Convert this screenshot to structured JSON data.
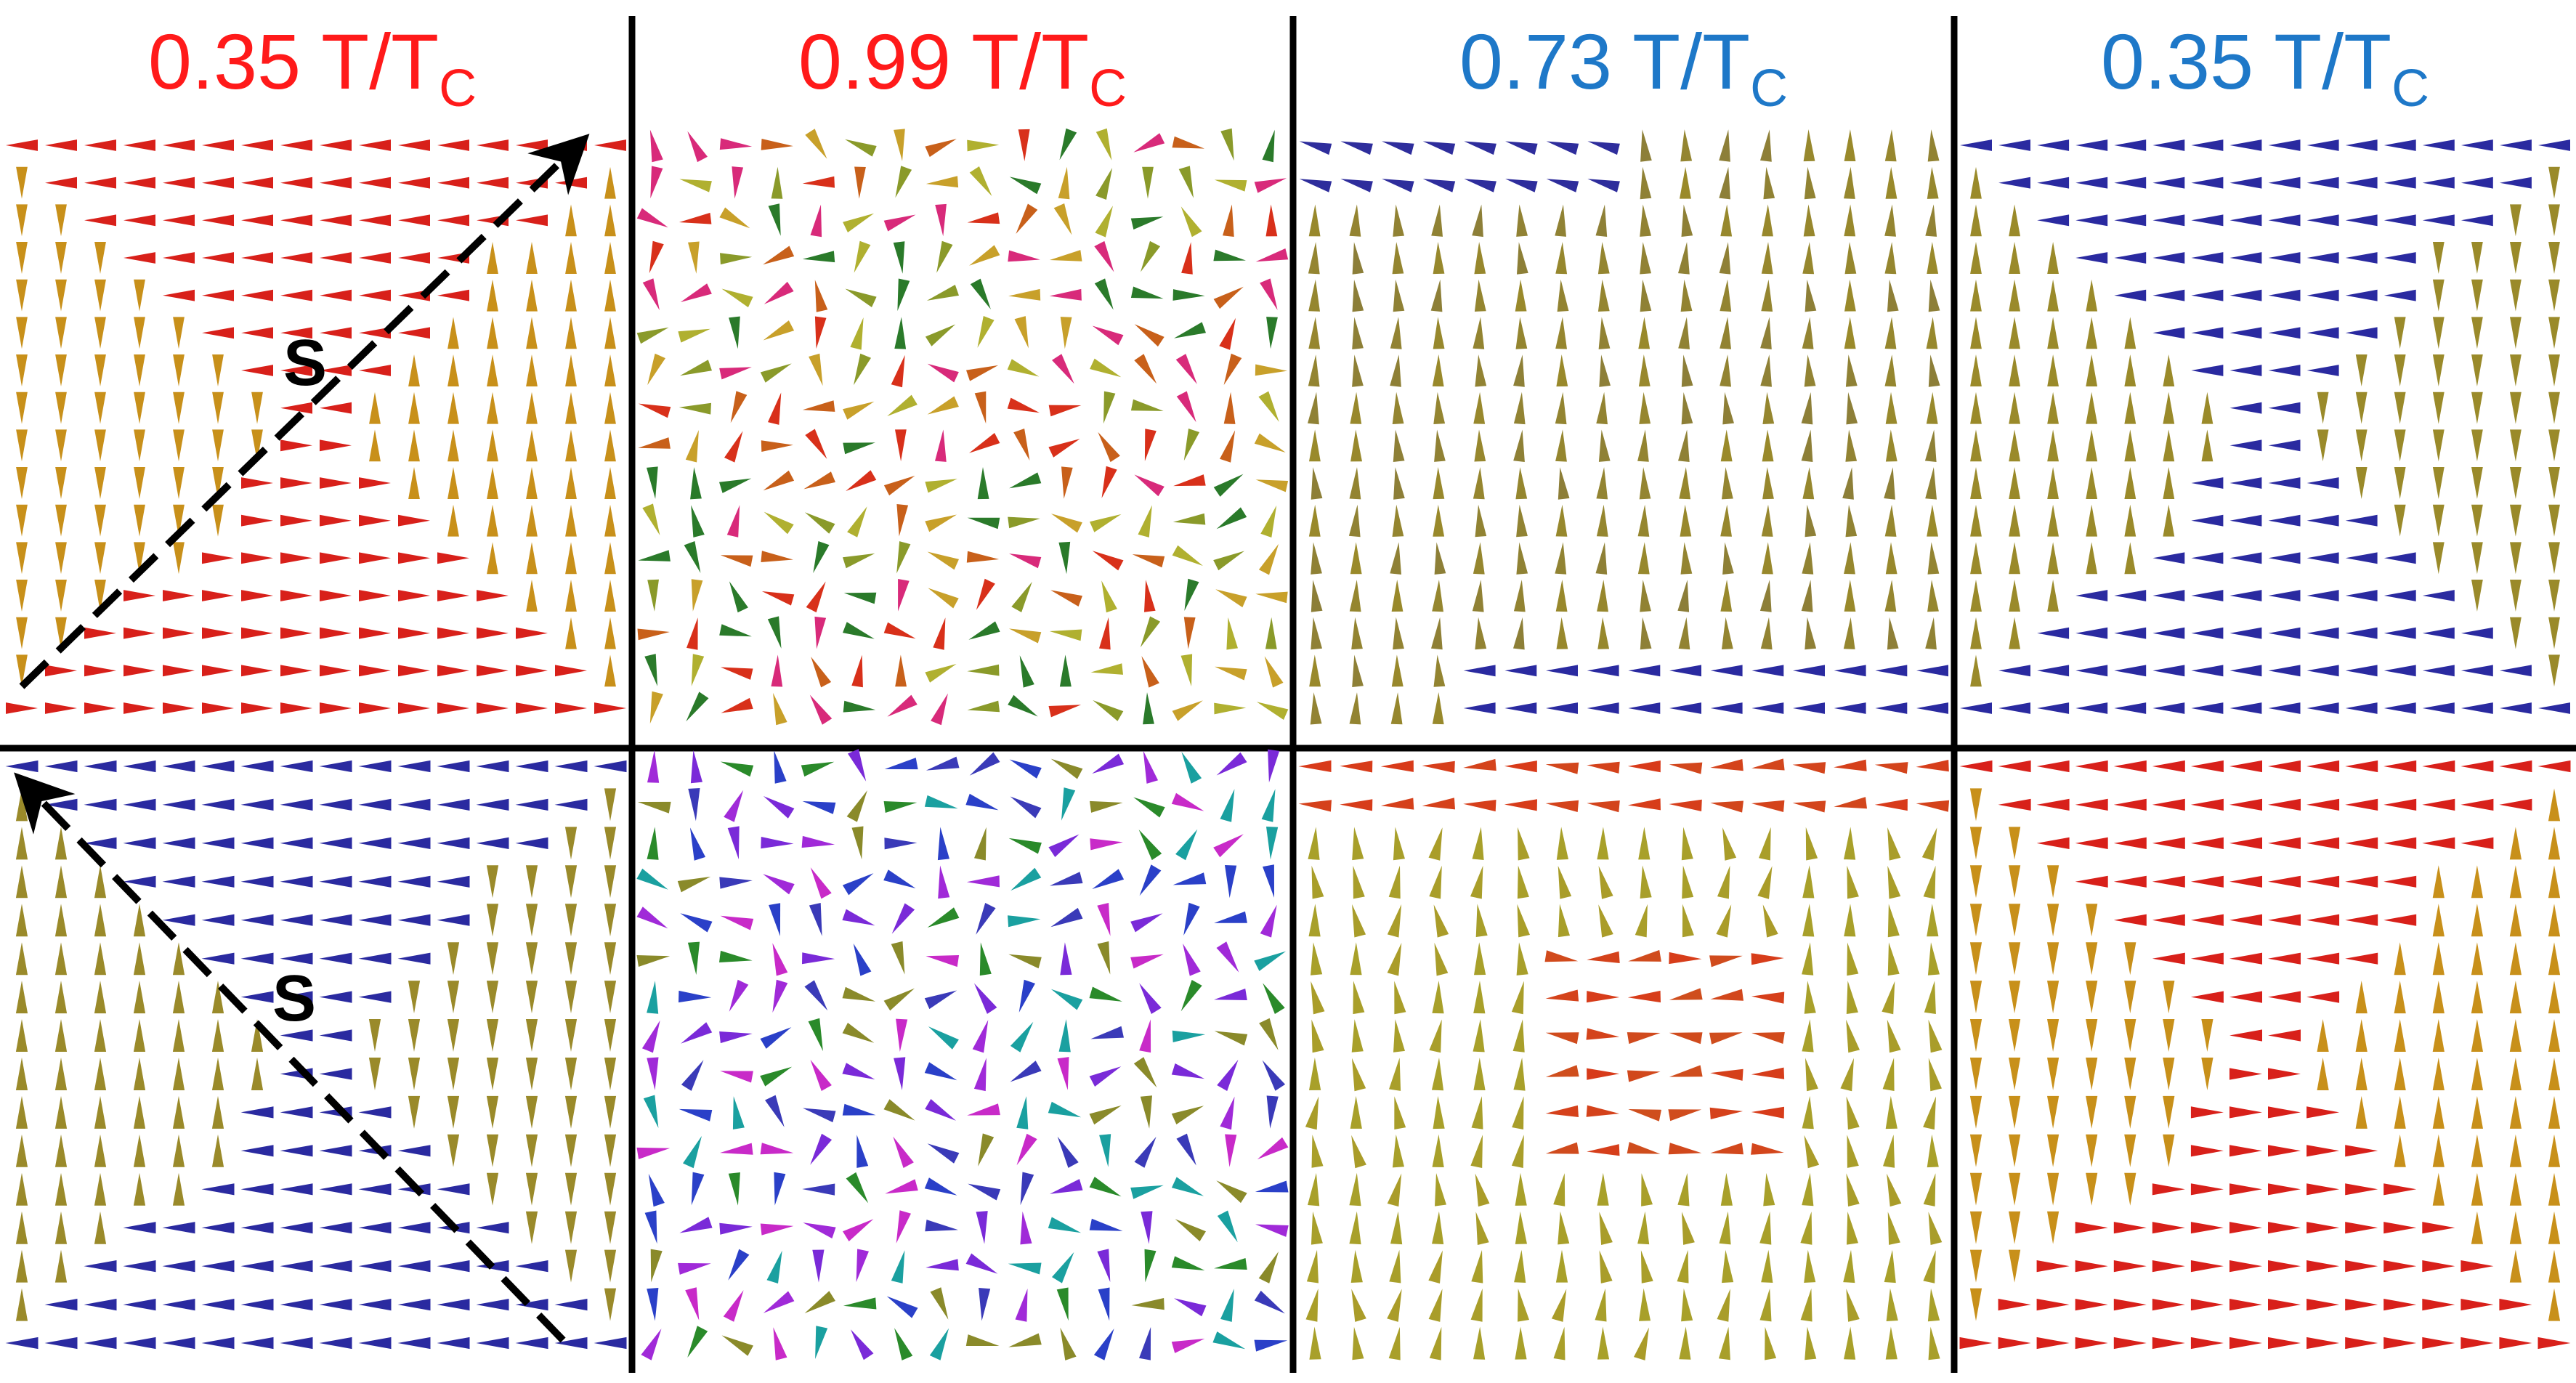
{
  "colors": {
    "red": "#ff1a1a",
    "blue": "#1e78c8",
    "divider": "#000000"
  },
  "columns": [
    {
      "title_main": "0.35 T/T",
      "title_sub": "C",
      "title_color": "#ff1a1a"
    },
    {
      "title_main": "0.99 T/T",
      "title_sub": "C",
      "title_color": "#ff1a1a"
    },
    {
      "title_main": "0.73 T/T",
      "title_sub": "C",
      "title_color": "#1e78c8"
    },
    {
      "title_main": "0.35 T/T",
      "title_sub": "C",
      "title_color": "#1e78c8"
    }
  ],
  "panels": [
    {
      "row": 0,
      "col": 0,
      "pattern": "vortex-cw",
      "palette": "warm"
    },
    {
      "row": 0,
      "col": 1,
      "pattern": "disorder",
      "palette": "mixed-warm"
    },
    {
      "row": 0,
      "col": 2,
      "pattern": "domains-vertical",
      "palette": "olive-blue"
    },
    {
      "row": 0,
      "col": 3,
      "pattern": "vortex-ccw",
      "palette": "olive-blue"
    },
    {
      "row": 1,
      "col": 0,
      "pattern": "vortex-ccw",
      "palette": "olive-blue"
    },
    {
      "row": 1,
      "col": 1,
      "pattern": "disorder",
      "palette": "mixed-cool"
    },
    {
      "row": 1,
      "col": 2,
      "pattern": "domains-mixed",
      "palette": "warm-olive"
    },
    {
      "row": 1,
      "col": 3,
      "pattern": "vortex-cw",
      "palette": "warm"
    }
  ],
  "annotations": [
    {
      "panel": 0,
      "label": "S",
      "direction": "diagonal-up-right"
    },
    {
      "panel": 4,
      "label": "S",
      "direction": "diagonal-up-left"
    }
  ]
}
